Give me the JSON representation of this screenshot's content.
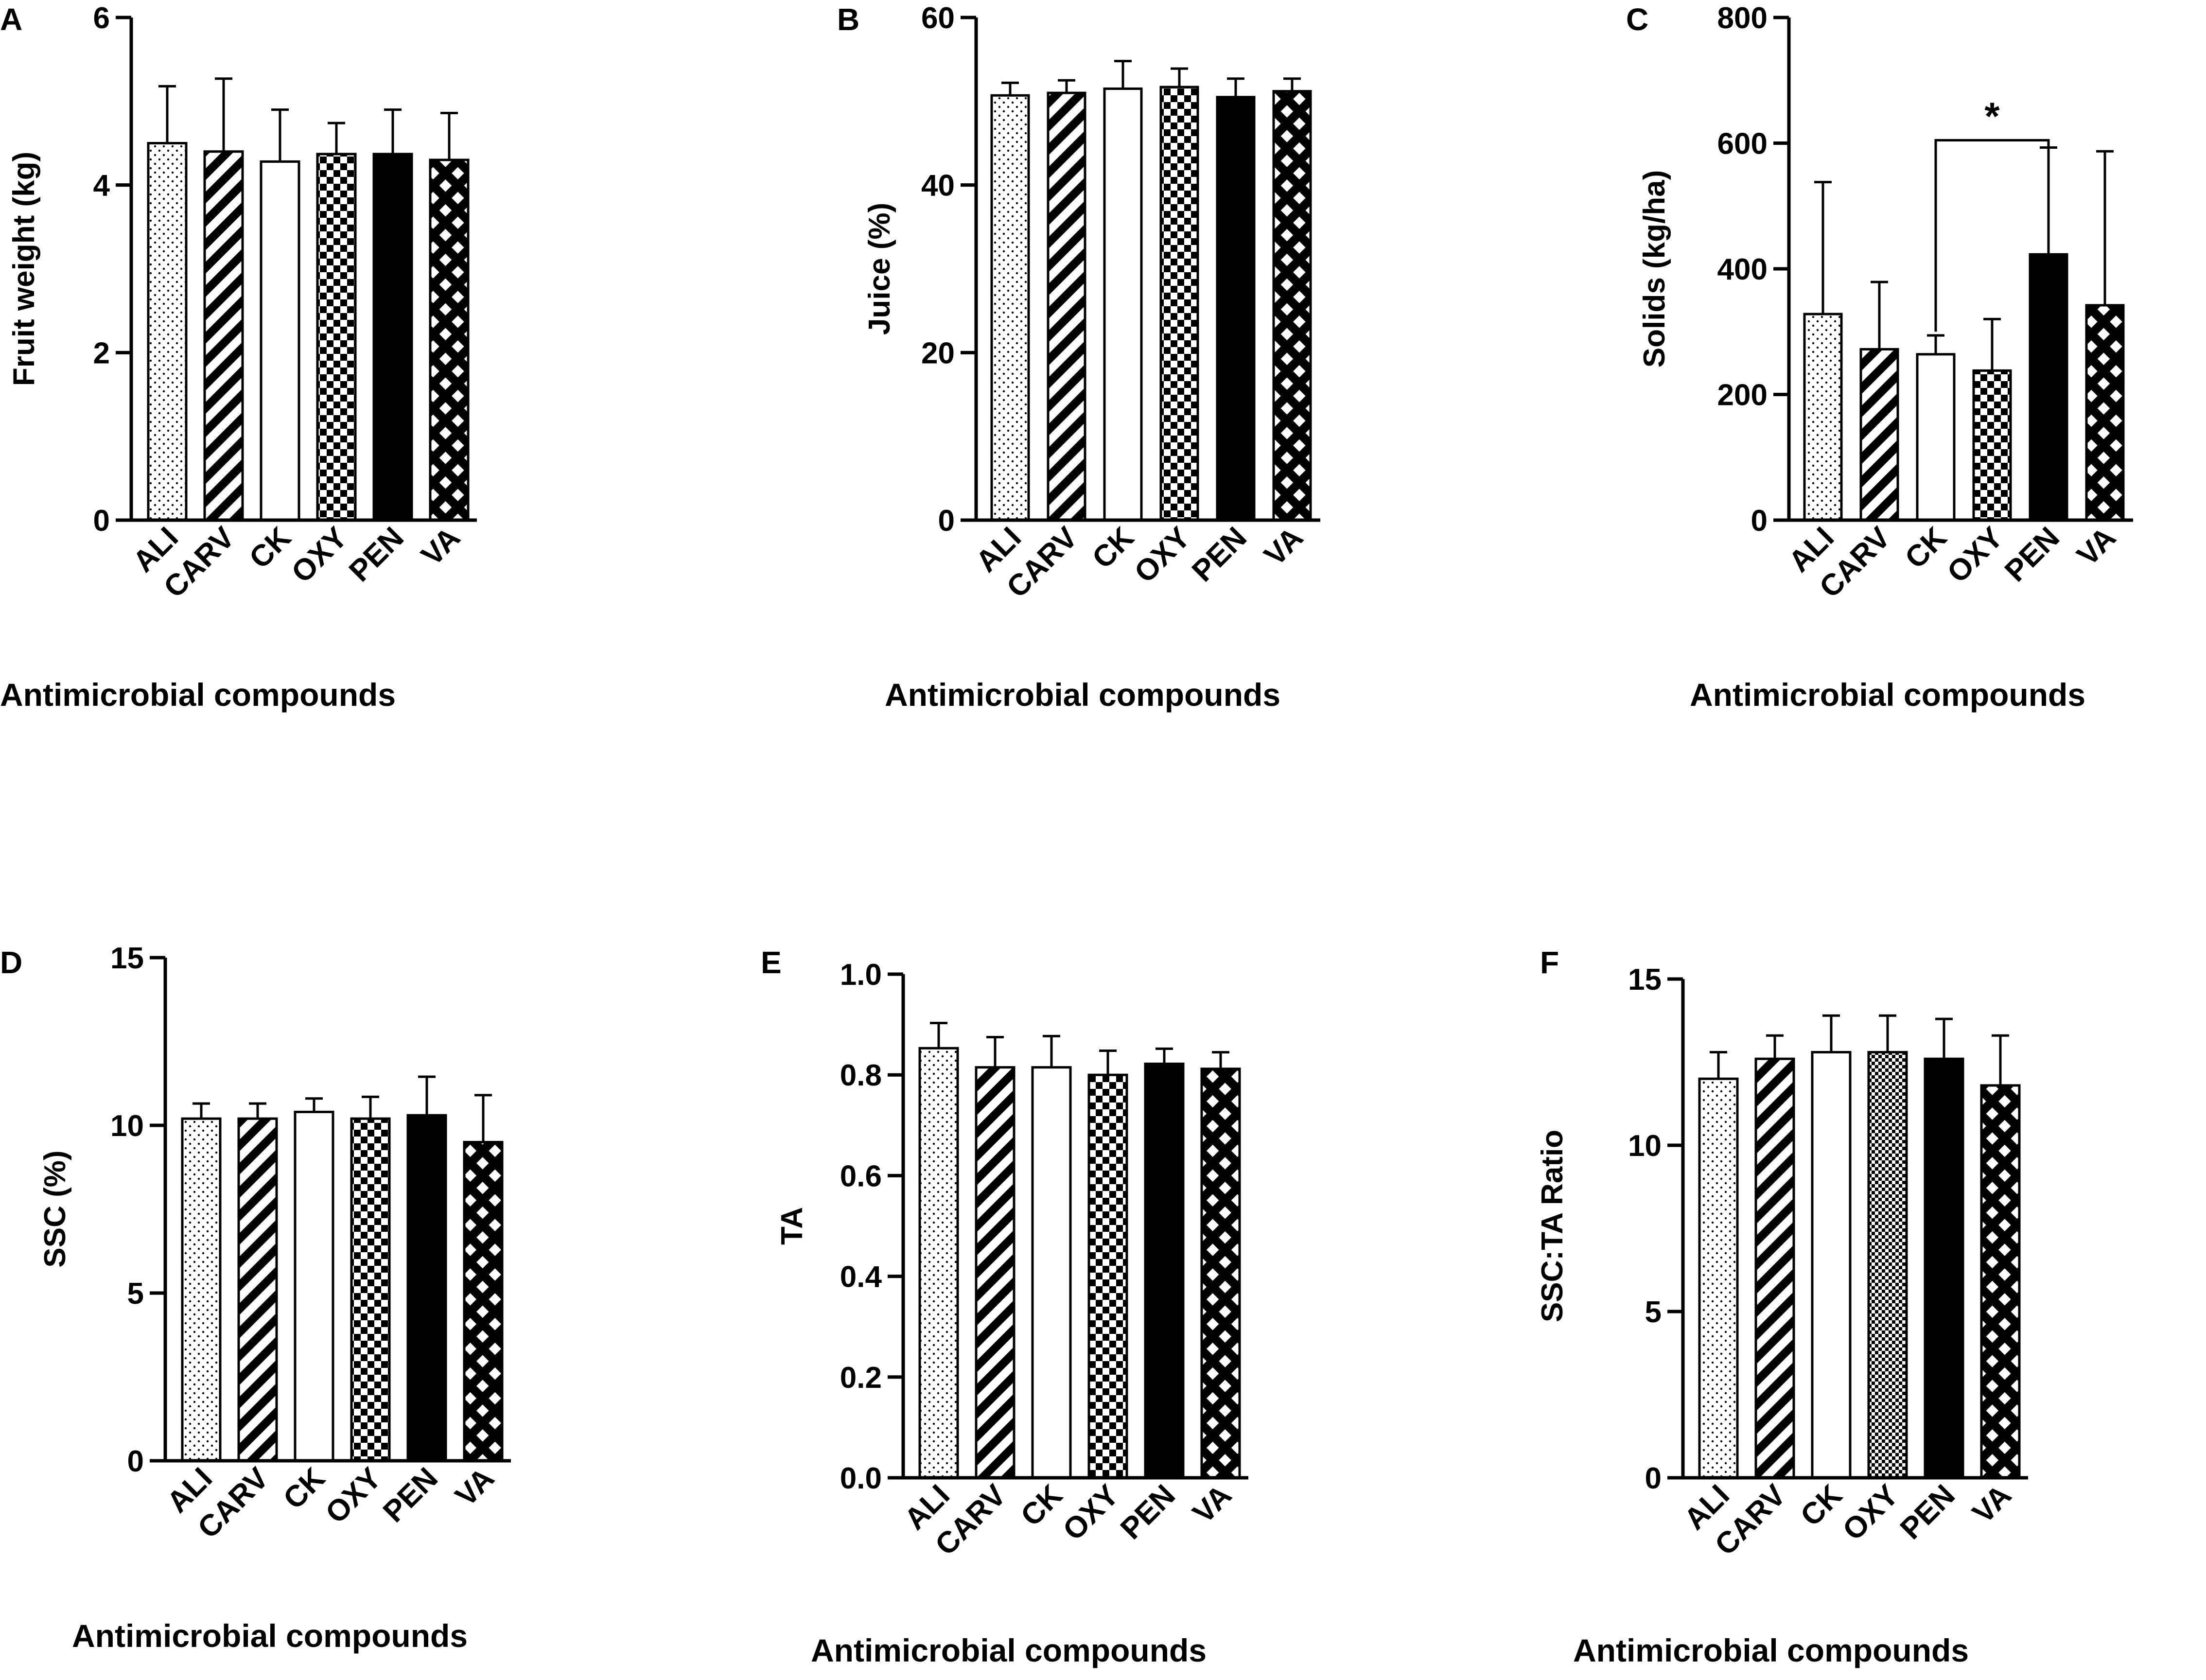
{
  "chart_data": [
    {
      "panel": "A",
      "type": "bar",
      "ylabel": "Fruit weight (kg)",
      "xlabel": "Antimicrobial compounds",
      "categories": [
        "ALI",
        "CARV",
        "CK",
        "OXY",
        "PEN",
        "VA"
      ],
      "patterns": [
        "dots",
        "diag",
        "none",
        "check",
        "solid",
        "xhatch"
      ],
      "values": [
        4.5,
        4.4,
        4.28,
        4.37,
        4.37,
        4.3
      ],
      "errors": [
        0.68,
        0.87,
        0.62,
        0.37,
        0.53,
        0.56
      ],
      "ylim": [
        0,
        6
      ],
      "yticks": [
        0,
        2,
        4,
        6
      ],
      "ytick_labels": [
        "0",
        "2",
        "4",
        "6"
      ]
    },
    {
      "panel": "B",
      "type": "bar",
      "ylabel": "Juice (%)",
      "xlabel": "Antimicrobial compounds",
      "categories": [
        "ALI",
        "CARV",
        "CK",
        "OXY",
        "PEN",
        "VA"
      ],
      "patterns": [
        "dots",
        "diag",
        "none",
        "check",
        "solid",
        "xhatch"
      ],
      "values": [
        50.7,
        51.0,
        51.5,
        51.7,
        50.5,
        51.2
      ],
      "errors": [
        1.5,
        1.5,
        3.3,
        2.2,
        2.2,
        1.5
      ],
      "ylim": [
        0,
        60
      ],
      "yticks": [
        0,
        20,
        40,
        60
      ],
      "ytick_labels": [
        "0",
        "20",
        "40",
        "60"
      ]
    },
    {
      "panel": "C",
      "type": "bar",
      "ylabel": "Solids (kg/ha)",
      "xlabel": "Antimicrobial compounds",
      "categories": [
        "ALI",
        "CARV",
        "CK",
        "OXY",
        "PEN",
        "VA"
      ],
      "patterns": [
        "dots",
        "diag",
        "none",
        "check",
        "solid",
        "xhatch"
      ],
      "values": [
        328,
        272,
        264,
        238,
        423,
        342
      ],
      "errors": [
        210,
        107,
        30,
        82,
        170,
        245
      ],
      "ylim": [
        0,
        800
      ],
      "yticks": [
        0,
        200,
        400,
        600,
        800
      ],
      "ytick_labels": [
        "0",
        "200",
        "400",
        "600",
        "800"
      ],
      "significance": {
        "from": "CK",
        "to": "PEN",
        "label": "*"
      }
    },
    {
      "panel": "D",
      "type": "bar",
      "ylabel": "SSC (%)",
      "xlabel": "Antimicrobial compounds",
      "categories": [
        "ALI",
        "CARV",
        "CK",
        "OXY",
        "PEN",
        "VA"
      ],
      "patterns": [
        "dots",
        "diag",
        "none",
        "check",
        "solid",
        "xhatch"
      ],
      "values": [
        10.2,
        10.2,
        10.4,
        10.2,
        10.3,
        9.5
      ],
      "errors": [
        0.45,
        0.45,
        0.4,
        0.65,
        1.15,
        1.4
      ],
      "ylim": [
        0,
        15
      ],
      "yticks": [
        0,
        5,
        10,
        15
      ],
      "ytick_labels": [
        "0",
        "5",
        "10",
        "15"
      ]
    },
    {
      "panel": "E",
      "type": "bar",
      "ylabel": "TA",
      "xlabel": "Antimicrobial compounds",
      "categories": [
        "ALI",
        "CARV",
        "CK",
        "OXY",
        "PEN",
        "VA"
      ],
      "patterns": [
        "dots",
        "diag",
        "none",
        "check",
        "solid",
        "xhatch"
      ],
      "values": [
        0.853,
        0.815,
        0.815,
        0.8,
        0.822,
        0.812
      ],
      "errors": [
        0.05,
        0.06,
        0.062,
        0.048,
        0.03,
        0.033
      ],
      "ylim": [
        0,
        1.0
      ],
      "yticks": [
        0,
        0.2,
        0.4,
        0.6,
        0.8,
        1.0
      ],
      "ytick_labels": [
        "0.0",
        "0.2",
        "0.4",
        "0.6",
        "0.8",
        "1.0"
      ]
    },
    {
      "panel": "F",
      "type": "bar",
      "ylabel": "SSC:TA Ratio",
      "xlabel": "Antimicrobial compounds",
      "categories": [
        "ALI",
        "CARV",
        "CK",
        "OXY",
        "PEN",
        "VA"
      ],
      "patterns": [
        "dots",
        "diag",
        "none",
        "dense-check",
        "solid",
        "xhatch"
      ],
      "values": [
        12.0,
        12.6,
        12.8,
        12.8,
        12.6,
        11.8
      ],
      "errors": [
        0.8,
        0.7,
        1.1,
        1.1,
        1.2,
        1.5
      ],
      "ylim": [
        0,
        15
      ],
      "yticks": [
        0,
        5,
        10,
        15
      ],
      "ytick_labels": [
        "0",
        "5",
        "10",
        "15"
      ]
    }
  ]
}
